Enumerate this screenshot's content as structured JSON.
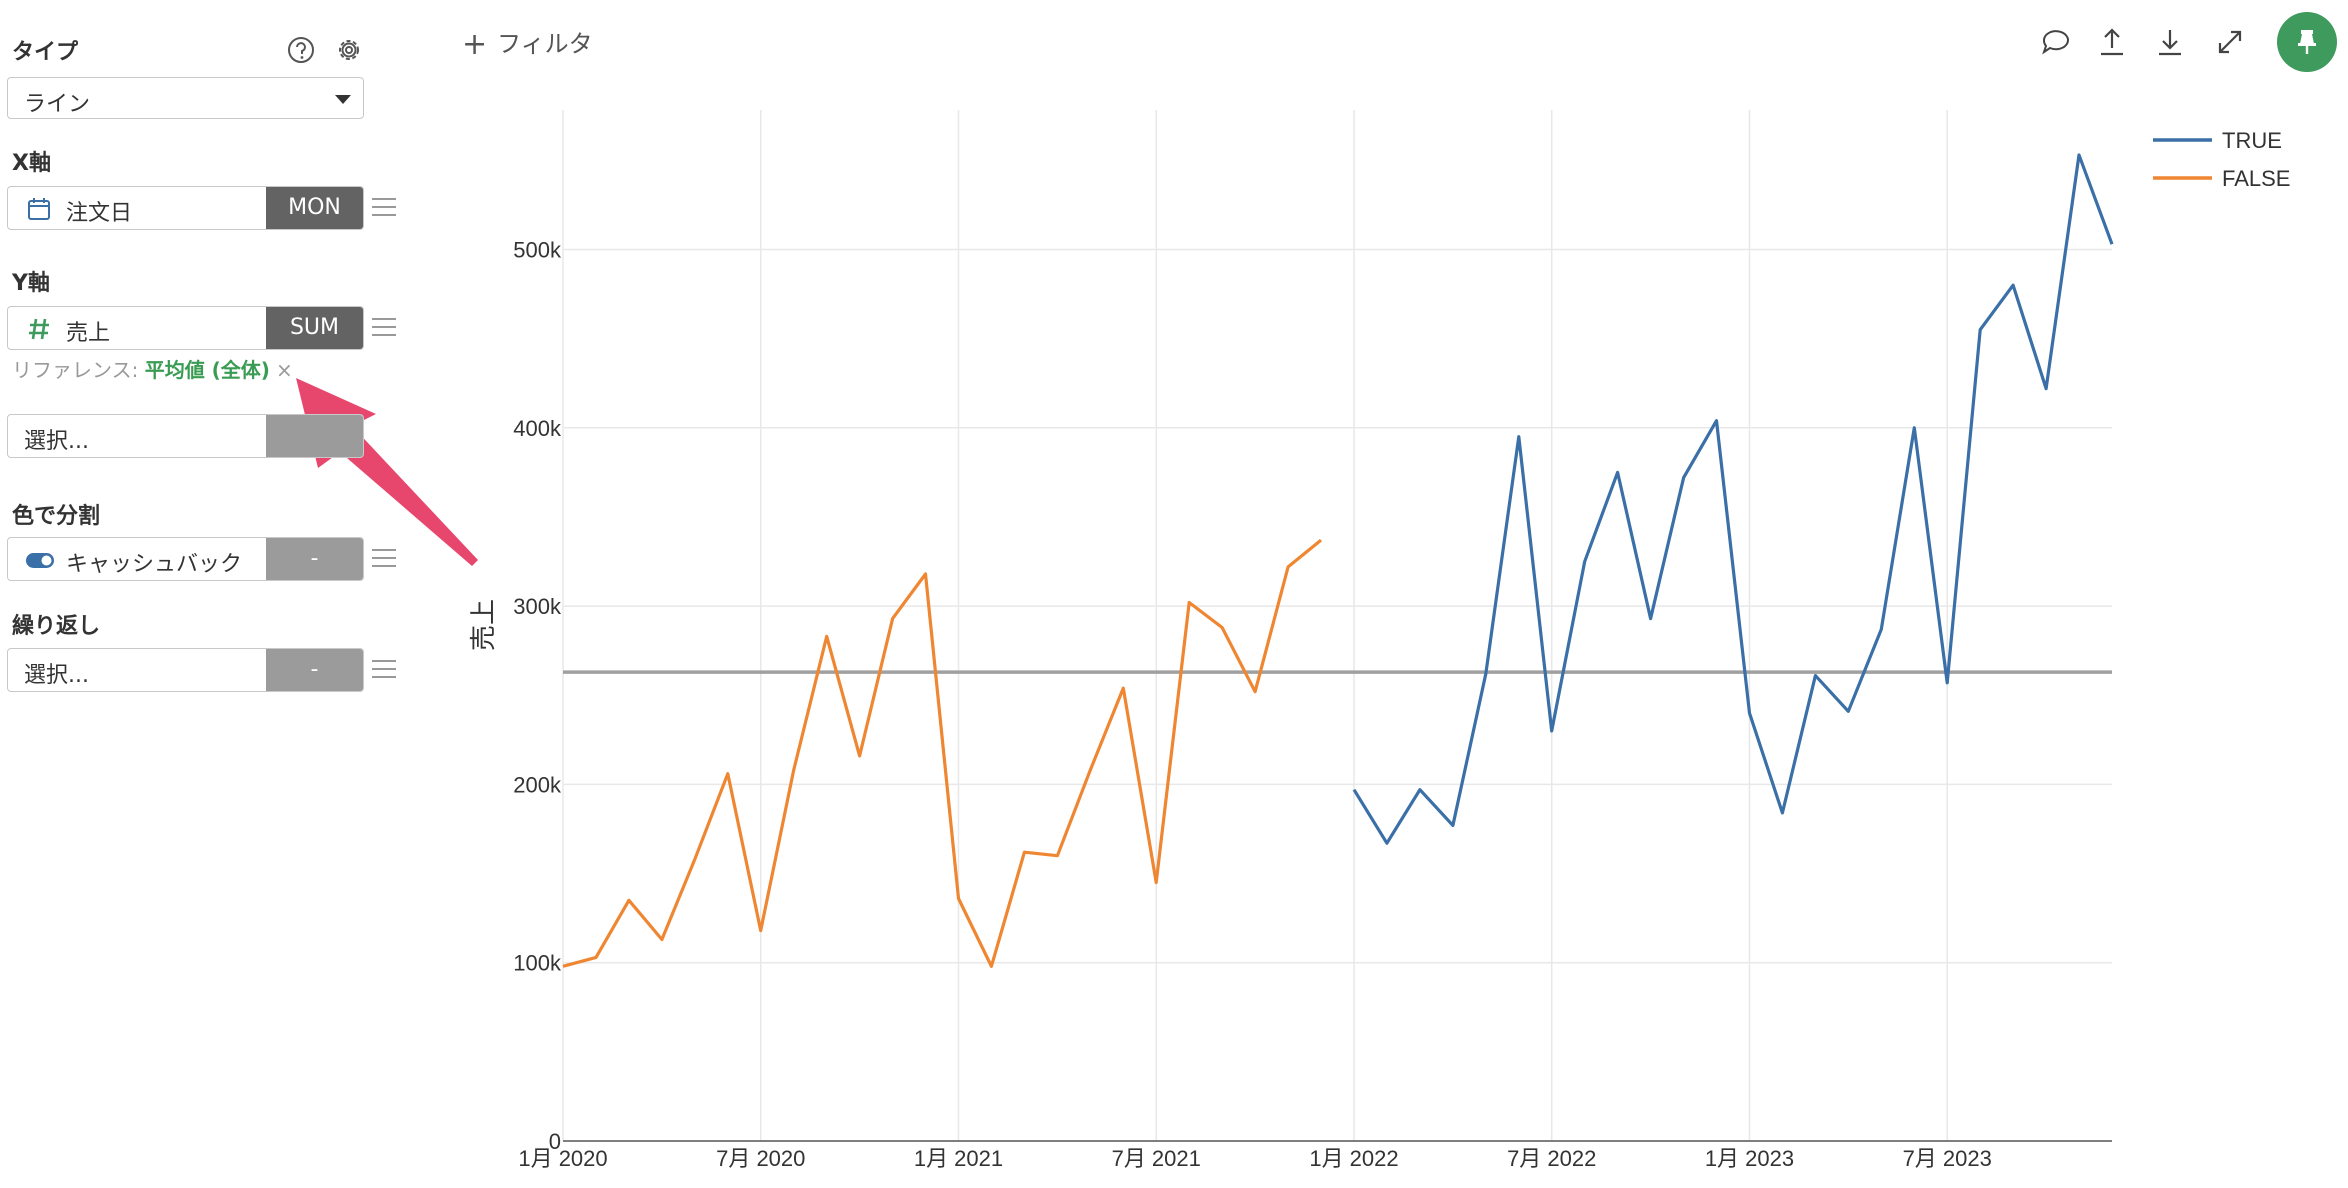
{
  "panel": {
    "type_section": {
      "title": "タイプ",
      "value": "ライン"
    },
    "x_axis": {
      "title": "X軸",
      "field": "注文日",
      "agg": "MON",
      "icon": "calendar-icon"
    },
    "y_axis": {
      "title": "Y軸",
      "field": "売上",
      "agg": "SUM",
      "icon": "number-icon",
      "reference_label": "リファレンス: ",
      "reference_value": "平均値 (全体)",
      "reference_remove": "×"
    },
    "extra_select": {
      "placeholder": "選択..."
    },
    "color_split": {
      "title": "色で分割",
      "field": "キャッシュバック",
      "agg": "-",
      "icon": "toggle-icon"
    },
    "repeat": {
      "title": "繰り返し",
      "placeholder": "選択...",
      "agg": "-"
    }
  },
  "toolbar": {
    "filter_label": "フィルタ",
    "icons": [
      "comment-icon",
      "upload-icon",
      "download-icon",
      "expand-icon",
      "pin-icon"
    ]
  },
  "colors": {
    "true_series": "#3a6fa7",
    "false_series": "#ef8632",
    "reference": "#a0a0a0",
    "accent": "#3e9a5d",
    "annotation_arrow": "#e8476d"
  },
  "chart_data": {
    "type": "line",
    "ylabel": "売上",
    "xlabel": "",
    "ylim": [
      0,
      550000
    ],
    "y_ticks": [
      {
        "value": 0,
        "label": "0"
      },
      {
        "value": 100000,
        "label": "100k"
      },
      {
        "value": 200000,
        "label": "200k"
      },
      {
        "value": 300000,
        "label": "300k"
      },
      {
        "value": 400000,
        "label": "400k"
      },
      {
        "value": 500000,
        "label": "500k"
      }
    ],
    "x_ticks": [
      "1月 2020",
      "7月 2020",
      "1月 2021",
      "7月 2021",
      "1月 2022",
      "7月 2022",
      "1月 2023",
      "7月 2023"
    ],
    "x_range": [
      "2020-01",
      "2023-12"
    ],
    "legend_position": "top-right",
    "reference_line": {
      "label": "平均値 (全体)",
      "value": 263000
    },
    "series": [
      {
        "name": "FALSE",
        "start": "2020-01",
        "values": [
          98000,
          103000,
          135000,
          113000,
          158000,
          206000,
          118000,
          208000,
          283000,
          216000,
          293000,
          318000,
          136000,
          98000,
          162000,
          160000,
          208000,
          254000,
          145000,
          302000,
          288000,
          252000,
          322000,
          337000
        ]
      },
      {
        "name": "TRUE",
        "start": "2022-01",
        "values": [
          197000,
          167000,
          197000,
          177000,
          262000,
          395000,
          230000,
          325000,
          375000,
          293000,
          372000,
          404000,
          240000,
          184000,
          261000,
          241000,
          287000,
          400000,
          257000,
          455000,
          480000,
          422000,
          553000,
          503000
        ]
      }
    ]
  }
}
